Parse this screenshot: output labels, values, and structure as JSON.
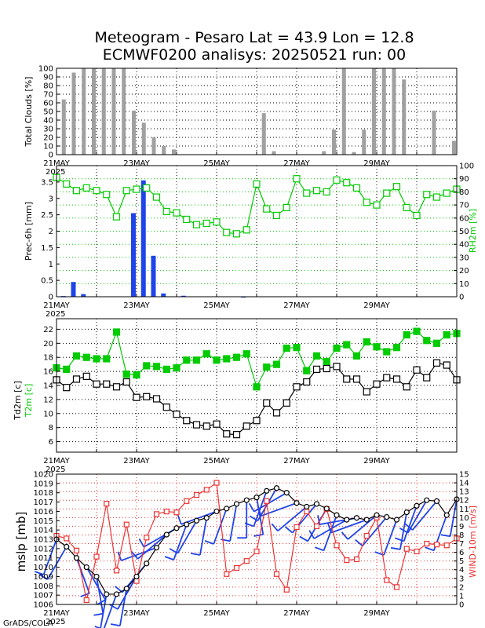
{
  "title": {
    "line1": "Meteogram - Pesaro Lat = 43.9 Lon = 12.8",
    "line2": "ECMWF0200 analisys: 20250521 run: 00"
  },
  "footer": "GrADS/COLA",
  "x_axis": {
    "ticks": [
      "21MAY",
      "23MAY",
      "25MAY",
      "27MAY",
      "29MAY"
    ],
    "year": "2025"
  },
  "colors": {
    "rh": "#00cc00",
    "t2m": "#00cc00",
    "prec": "#1f44e8",
    "mslp": "#000000",
    "wind": "#ee3333",
    "barbs": "#1f44e8",
    "clouds": "#a0a0a0"
  },
  "chart_data": [
    {
      "type": "bar",
      "panel": "clouds",
      "ylabel": "Total Clouds [%]",
      "ylim": [
        0,
        100
      ],
      "yticks": [
        "0",
        "10",
        "20",
        "30",
        "40",
        "50",
        "60",
        "70",
        "80",
        "90",
        "100"
      ],
      "x_unit": "days since 21MAY 00Z",
      "x": [
        0.25,
        0.5,
        0.75,
        1.0,
        1.25,
        1.5,
        1.75,
        2.0,
        2.25,
        2.5,
        2.75,
        3.0,
        3.25,
        3.5,
        3.75,
        4.0,
        4.25,
        4.5,
        4.75,
        5.0,
        5.25,
        5.5,
        5.75,
        6.0,
        6.25,
        6.5,
        6.75,
        7.0,
        7.25,
        7.5,
        7.75,
        8.0,
        8.25,
        8.5,
        8.75,
        9.0,
        9.25,
        9.5,
        9.75,
        10.0
      ],
      "values": [
        64,
        95,
        100,
        100,
        100,
        100,
        100,
        51,
        37,
        20,
        10,
        6,
        0,
        0,
        0,
        0,
        0,
        0,
        0,
        0,
        48,
        4,
        0,
        0,
        0,
        0,
        4,
        29,
        100,
        3,
        29,
        100,
        100,
        100,
        87,
        0,
        0,
        51,
        0,
        16
      ]
    },
    {
      "type": "bar+line",
      "panel": "precip-rh",
      "ylabel": "Prec-6h [mm]",
      "ylabel_right": "RH2m [%]",
      "ylim": [
        0,
        4
      ],
      "ylim_right": [
        0,
        100
      ],
      "yticks": [
        "0",
        "0.5",
        "1",
        "1.5",
        "2",
        "2.5",
        "3",
        "3.5"
      ],
      "yticks_right": [
        "0",
        "10",
        "20",
        "30",
        "40",
        "50",
        "60",
        "70",
        "80",
        "90",
        "100"
      ],
      "series": [
        {
          "name": "Prec-6h",
          "type": "bar",
          "x": [
            0.25,
            0.5,
            0.75,
            1.0,
            1.25,
            1.5,
            1.75,
            2.0,
            2.25,
            2.5,
            2.75,
            3.0,
            3.25,
            3.5,
            3.75,
            4.0,
            4.25,
            4.5,
            4.75,
            5.0,
            5.25,
            5.5,
            5.75,
            6.0,
            6.25,
            6.5,
            6.75,
            7.0,
            7.25,
            7.5,
            7.75,
            8.0,
            8.25,
            8.5,
            8.75,
            9.0,
            9.25,
            9.5,
            9.75,
            10.0
          ],
          "values": [
            0.02,
            0.45,
            0.08,
            0,
            0,
            0,
            0,
            2.55,
            3.55,
            1.25,
            0.1,
            0,
            0.03,
            0,
            0,
            0,
            0,
            0,
            0.01,
            0,
            0,
            0,
            0,
            0,
            0,
            0,
            0,
            0,
            0,
            0,
            0,
            0,
            0,
            0,
            0,
            0,
            0,
            0,
            0,
            0
          ]
        },
        {
          "name": "RH2m",
          "type": "line",
          "x": [
            0,
            0.25,
            0.5,
            0.75,
            1.0,
            1.25,
            1.5,
            1.75,
            2.0,
            2.25,
            2.5,
            2.75,
            3.0,
            3.25,
            3.5,
            3.75,
            4.0,
            4.25,
            4.5,
            4.75,
            5.0,
            5.25,
            5.5,
            5.75,
            6.0,
            6.25,
            6.5,
            6.75,
            7.0,
            7.25,
            7.5,
            7.75,
            8.0,
            8.25,
            8.5,
            8.75,
            9.0,
            9.25,
            9.5,
            9.75,
            10.0
          ],
          "values": [
            91,
            86,
            81,
            83,
            81,
            78,
            61,
            81,
            82,
            83,
            76,
            65,
            64,
            59,
            55,
            56,
            57,
            49,
            48,
            51,
            86,
            67,
            62,
            68,
            90,
            79,
            81,
            80,
            89,
            87,
            83,
            72,
            70,
            79,
            84,
            68,
            62,
            78,
            76,
            79,
            82
          ]
        }
      ]
    },
    {
      "type": "line",
      "panel": "temperature",
      "ylabel": "Td2m [c]",
      "ylabel2": "T2m [c]",
      "ylim": [
        4.5,
        23.5
      ],
      "yticks": [
        "6",
        "8",
        "10",
        "12",
        "14",
        "16",
        "18",
        "20",
        "22"
      ],
      "series": [
        {
          "name": "T2m",
          "marker": "filled-square",
          "x": [
            0,
            0.25,
            0.5,
            0.75,
            1.0,
            1.25,
            1.5,
            1.75,
            2.0,
            2.25,
            2.5,
            2.75,
            3.0,
            3.25,
            3.5,
            3.75,
            4.0,
            4.25,
            4.5,
            4.75,
            5.0,
            5.25,
            5.5,
            5.75,
            6.0,
            6.25,
            6.5,
            6.75,
            7.0,
            7.25,
            7.5,
            7.75,
            8.0,
            8.25,
            8.5,
            8.75,
            9.0,
            9.25,
            9.5,
            9.75,
            10.0
          ],
          "values": [
            16.5,
            16.3,
            18.2,
            18.0,
            17.8,
            17.8,
            21.6,
            15.6,
            15.5,
            16.8,
            16.7,
            16.3,
            16.5,
            17.6,
            17.6,
            18.5,
            17.6,
            17.8,
            18.0,
            18.5,
            13.8,
            16.6,
            17.0,
            19.3,
            19.4,
            16.1,
            18.2,
            17.4,
            19.3,
            19.8,
            18.2,
            20.2,
            19.5,
            18.8,
            19.4,
            21.2,
            21.7,
            20.4,
            20.0,
            21.2,
            21.4
          ]
        },
        {
          "name": "Td2m",
          "marker": "open-square",
          "x": [
            0,
            0.25,
            0.5,
            0.75,
            1.0,
            1.25,
            1.5,
            1.75,
            2.0,
            2.25,
            2.5,
            2.75,
            3.0,
            3.25,
            3.5,
            3.75,
            4.0,
            4.25,
            4.5,
            4.75,
            5.0,
            5.25,
            5.5,
            5.75,
            6.0,
            6.25,
            6.5,
            6.75,
            7.0,
            7.25,
            7.5,
            7.75,
            8.0,
            8.25,
            8.5,
            8.75,
            9.0,
            9.25,
            9.5,
            9.75,
            10.0
          ],
          "values": [
            14.8,
            13.7,
            14.9,
            15.3,
            14.2,
            14.2,
            13.8,
            14.5,
            12.3,
            12.4,
            12.1,
            10.9,
            9.9,
            9.0,
            8.4,
            8.2,
            8.5,
            7.1,
            7.0,
            8.2,
            9.0,
            11.5,
            10.1,
            11.5,
            13.8,
            14.5,
            16.3,
            16.4,
            16.7,
            14.9,
            14.9,
            13.1,
            14.2,
            15.1,
            14.9,
            13.8,
            16.2,
            15.1,
            17.2,
            16.9,
            14.8
          ]
        }
      ]
    },
    {
      "type": "line",
      "panel": "mslp-wind",
      "ylabel": "mslp [mb]",
      "ylabel_right": "WIND-10m [m/s]",
      "ylim": [
        1006,
        1020
      ],
      "ylim_right": [
        0,
        15
      ],
      "yticks": [
        "1006",
        "1007",
        "1008",
        "1009",
        "1010",
        "1011",
        "1012",
        "1013",
        "1014",
        "1015",
        "1016",
        "1017",
        "1018",
        "1019",
        "1020"
      ],
      "yticks_right": [
        "0",
        "1",
        "2",
        "3",
        "4",
        "5",
        "6",
        "7",
        "8",
        "9",
        "10",
        "11",
        "12",
        "13",
        "14",
        "15"
      ],
      "series": [
        {
          "name": "mslp",
          "marker": "open-circle",
          "x": [
            0,
            0.25,
            0.5,
            0.75,
            1.0,
            1.25,
            1.5,
            1.75,
            2.0,
            2.25,
            2.5,
            2.75,
            3.0,
            3.25,
            3.5,
            3.75,
            4.0,
            4.25,
            4.5,
            4.75,
            5.0,
            5.25,
            5.5,
            5.75,
            6.0,
            6.25,
            6.5,
            6.75,
            7.0,
            7.25,
            7.5,
            7.75,
            8.0,
            8.25,
            8.5,
            8.75,
            9.0,
            9.25,
            9.5,
            9.75,
            10.0
          ],
          "values": [
            1013.0,
            1012.2,
            1011.0,
            1010.0,
            1009.0,
            1007.1,
            1007.1,
            1007.7,
            1009.0,
            1010.4,
            1012.1,
            1013.5,
            1014.2,
            1014.6,
            1015.0,
            1015.3,
            1016.0,
            1016.3,
            1016.8,
            1017.2,
            1017.5,
            1018.2,
            1018.5,
            1018.0,
            1016.9,
            1016.5,
            1016.8,
            1016.3,
            1015.6,
            1015.1,
            1015.3,
            1015.1,
            1015.6,
            1015.4,
            1015.1,
            1015.9,
            1016.6,
            1017.2,
            1017.1,
            1015.6,
            1017.3
          ]
        },
        {
          "name": "WIND-10m",
          "marker": "open-square",
          "x": [
            0,
            0.25,
            0.5,
            0.75,
            1.0,
            1.25,
            1.5,
            1.75,
            2.0,
            2.25,
            2.5,
            2.75,
            3.0,
            3.25,
            3.5,
            3.75,
            4.0,
            4.25,
            4.5,
            4.75,
            5.0,
            5.25,
            5.5,
            5.75,
            6.0,
            6.25,
            6.5,
            6.75,
            7.0,
            7.25,
            7.5,
            7.75,
            8.0,
            8.25,
            8.5,
            8.75,
            9.0,
            9.25,
            9.5,
            9.75,
            10.0
          ],
          "values": [
            7.9,
            7.6,
            6.2,
            0.5,
            5.5,
            11.6,
            3.9,
            9.2,
            2.7,
            7.7,
            10.4,
            10.7,
            10.6,
            11.9,
            12.6,
            13.2,
            14.0,
            3.5,
            4.2,
            5.0,
            6.1,
            11.9,
            3.5,
            1.7,
            8.9,
            10.7,
            9.0,
            11.0,
            6.8,
            5.1,
            5.2,
            7.9,
            10.0,
            2.8,
            2.0,
            6.4,
            6.1,
            7.0,
            6.9,
            6.8,
            7.6
          ]
        }
      ]
    }
  ]
}
